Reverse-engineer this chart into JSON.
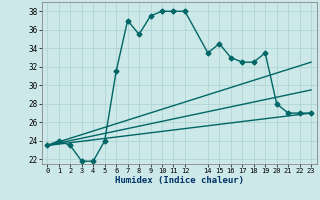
{
  "xlabel": "Humidex (Indice chaleur)",
  "bg_color": "#cce8e8",
  "grid_color": "#b0d4d4",
  "line_color": "#006666",
  "xlim": [
    -0.5,
    23.5
  ],
  "ylim": [
    21.5,
    39.0
  ],
  "yticks": [
    22,
    24,
    26,
    28,
    30,
    32,
    34,
    36,
    38
  ],
  "xticks": [
    0,
    1,
    2,
    3,
    4,
    5,
    6,
    7,
    8,
    9,
    10,
    11,
    12,
    14,
    15,
    16,
    17,
    18,
    19,
    20,
    21,
    22,
    23
  ],
  "xtick_labels": [
    "0",
    "1",
    "2",
    "3",
    "4",
    "5",
    "6",
    "7",
    "8",
    "9",
    "10",
    "11",
    "12",
    "14",
    "15",
    "16",
    "17",
    "18",
    "19",
    "20",
    "21",
    "22",
    "23"
  ],
  "series1_x": [
    0,
    1,
    2,
    3,
    4,
    5,
    6,
    7,
    8,
    9,
    10,
    11,
    12,
    14,
    15,
    16,
    17,
    18,
    19,
    20,
    21,
    22,
    23
  ],
  "series1_y": [
    23.5,
    24.0,
    23.5,
    21.8,
    21.8,
    24.0,
    31.5,
    37.0,
    35.5,
    37.5,
    38.0,
    38.0,
    38.0,
    33.5,
    34.5,
    33.0,
    32.5,
    32.5,
    33.5,
    28.0,
    27.0,
    27.0,
    27.0
  ],
  "series2_x": [
    0,
    23
  ],
  "series2_y": [
    23.5,
    32.5
  ],
  "series3_x": [
    0,
    23
  ],
  "series3_y": [
    23.5,
    27.0
  ],
  "series4_x": [
    0,
    23
  ],
  "series4_y": [
    23.5,
    29.5
  ],
  "marker": "D",
  "markersize": 2.5,
  "linewidth": 1.0
}
